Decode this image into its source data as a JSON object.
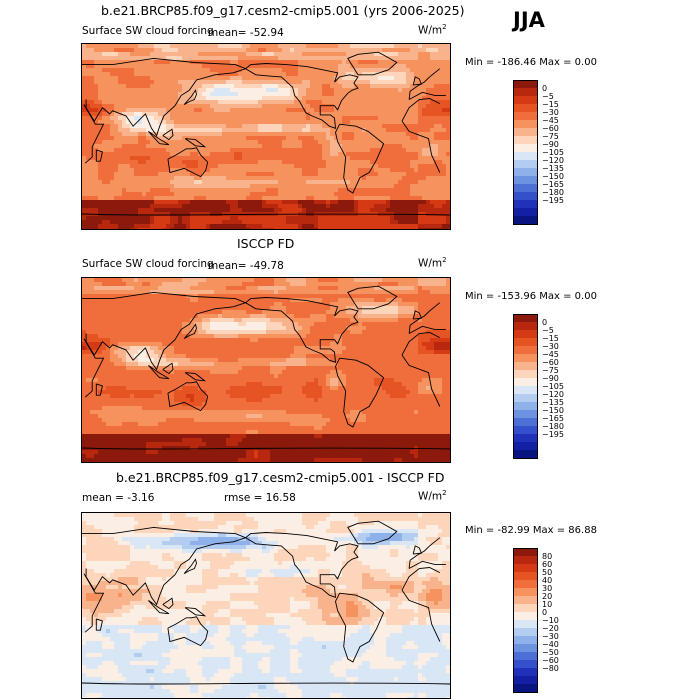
{
  "season": "JJA",
  "panels": [
    {
      "title": "b.e21.BRCP85.f09_g17.cesm2-cmip5.001 (yrs 2006-2025)",
      "left_label": "Surface SW cloud forcing",
      "stat1": "mean= -52.94",
      "stat2": "",
      "units_base": "W/m",
      "units_exp": "2",
      "minmax": "Min = -186.46 Max =   0.00",
      "colors": [
        "#8c1a0c",
        "#b8280f",
        "#d53a14",
        "#e65424",
        "#f06e3c",
        "#f5925e",
        "#f9b38c",
        "#fcd5ba",
        "#fbeee4",
        "#d8e6f6",
        "#b3cdf0",
        "#8eb1ea",
        "#6b93e0",
        "#4d70d6",
        "#3550cb",
        "#2132ba",
        "#1420a3",
        "#081480"
      ],
      "labels": [
        "0",
        "-5",
        "-15",
        "-30",
        "-45",
        "-60",
        "-75",
        "-90",
        "-105",
        "-120",
        "-135",
        "-150",
        "-165",
        "-180",
        "-195"
      ]
    },
    {
      "title": "ISCCP FD",
      "left_label": "Surface SW cloud forcing",
      "stat1": "mean= -49.78",
      "stat2": "",
      "units_base": "W/m",
      "units_exp": "2",
      "minmax": "Min = -153.96 Max =   0.00",
      "colors": [
        "#8c1a0c",
        "#b8280f",
        "#d53a14",
        "#e65424",
        "#f06e3c",
        "#f5925e",
        "#f9b38c",
        "#fcd5ba",
        "#fbeee4",
        "#d8e6f6",
        "#b3cdf0",
        "#8eb1ea",
        "#6b93e0",
        "#4d70d6",
        "#3550cb",
        "#2132ba",
        "#1420a3",
        "#081480"
      ],
      "labels": [
        "0",
        "-5",
        "-15",
        "-30",
        "-45",
        "-60",
        "-75",
        "-90",
        "-105",
        "-120",
        "-135",
        "-150",
        "-165",
        "-180",
        "-195"
      ]
    },
    {
      "title": "b.e21.BRCP85.f09_g17.cesm2-cmip5.001 - ISCCP FD",
      "left_label": "mean =   -3.16",
      "stat1": "",
      "stat2": "rmse =  16.58",
      "units_base": "W/m",
      "units_exp": "2",
      "minmax": "Min = -82.99 Max =  86.88",
      "colors": [
        "#8c1a0c",
        "#b8280f",
        "#d53a14",
        "#e65424",
        "#f06e3c",
        "#f5925e",
        "#f9b38c",
        "#fcd5ba",
        "#fbeee4",
        "#d8e6f6",
        "#b3cdf0",
        "#8eb1ea",
        "#6b93e0",
        "#4d70d6",
        "#3550cb",
        "#2132ba",
        "#1420a3",
        "#081480"
      ],
      "labels": [
        "80",
        "60",
        "50",
        "40",
        "30",
        "20",
        "10",
        "0",
        "-10",
        "-20",
        "-30",
        "-40",
        "-50",
        "-60",
        "-80"
      ]
    }
  ]
}
